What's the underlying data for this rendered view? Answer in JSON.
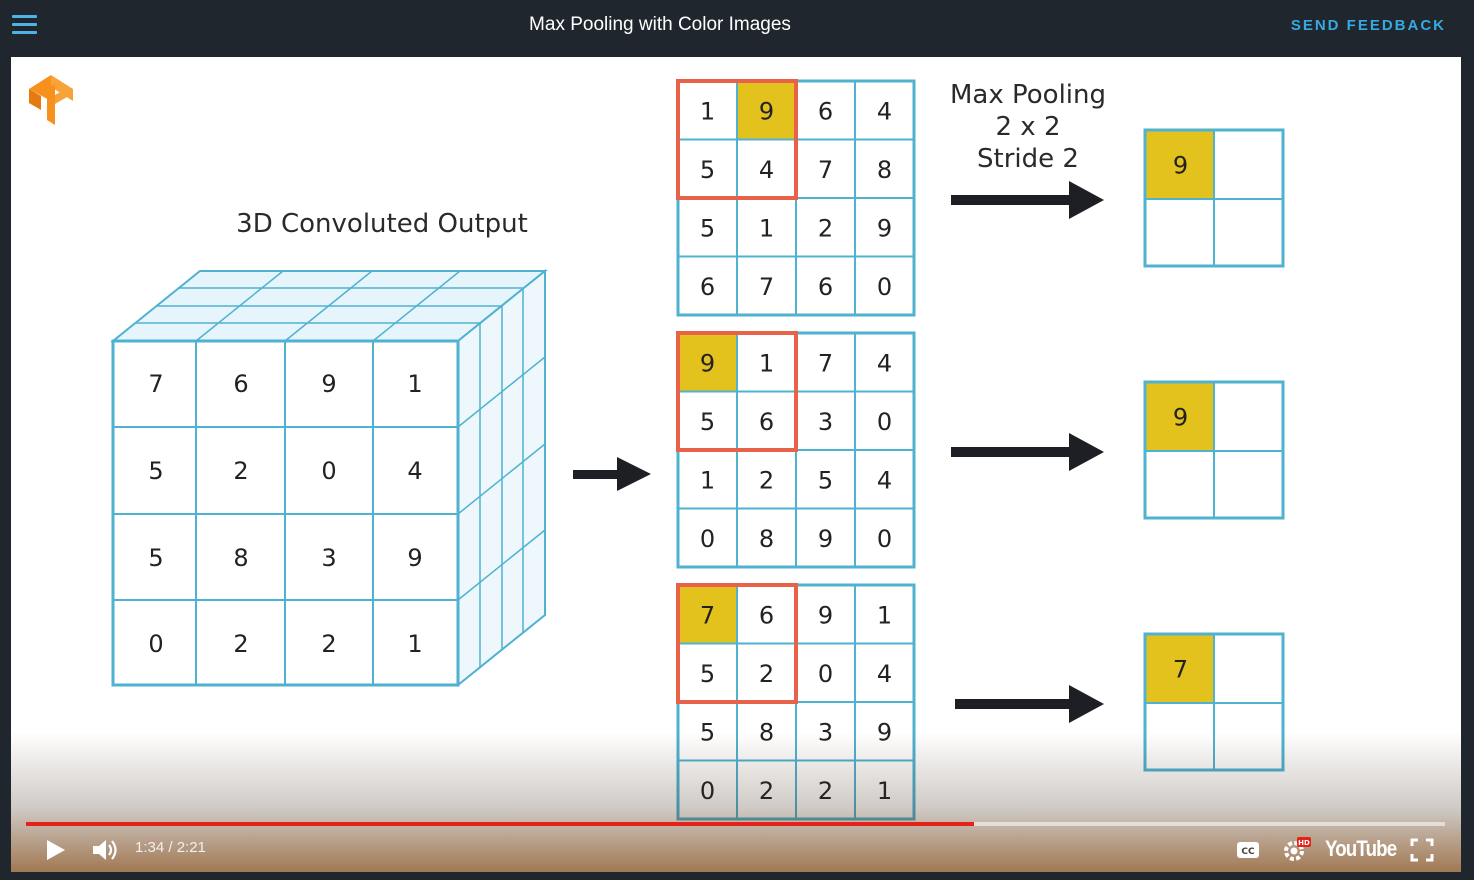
{
  "header": {
    "title": "Max Pooling with Color Images",
    "feedback_label": "SEND FEEDBACK"
  },
  "slide": {
    "cube_title": "3D Convoluted Output",
    "cube_front": [
      [
        "7",
        "6",
        "9",
        "1"
      ],
      [
        "5",
        "2",
        "0",
        "4"
      ],
      [
        "5",
        "8",
        "3",
        "9"
      ],
      [
        "0",
        "2",
        "2",
        "1"
      ]
    ],
    "pool_label_lines": [
      "Max Pooling",
      "2 x 2",
      "Stride 2"
    ],
    "channels": [
      {
        "grid": [
          [
            "1",
            "9",
            "6",
            "4"
          ],
          [
            "5",
            "4",
            "7",
            "8"
          ],
          [
            "5",
            "1",
            "2",
            "9"
          ],
          [
            "6",
            "7",
            "6",
            "0"
          ]
        ],
        "max": "9",
        "max_row": 0,
        "max_col": 1
      },
      {
        "grid": [
          [
            "9",
            "1",
            "7",
            "4"
          ],
          [
            "5",
            "6",
            "3",
            "0"
          ],
          [
            "1",
            "2",
            "5",
            "4"
          ],
          [
            "0",
            "8",
            "9",
            "0"
          ]
        ],
        "max": "9",
        "max_row": 0,
        "max_col": 0
      },
      {
        "grid": [
          [
            "7",
            "6",
            "9",
            "1"
          ],
          [
            "5",
            "2",
            "0",
            "4"
          ],
          [
            "5",
            "8",
            "3",
            "9"
          ],
          [
            "0",
            "2",
            "2",
            "1"
          ]
        ],
        "max": "7",
        "max_row": 0,
        "max_col": 0
      }
    ],
    "colors": {
      "grid_line": "#4fb2d1",
      "highlight": "#e4c21d",
      "window": "#e8624a",
      "arrow": "#1d1f24",
      "logo": "#f6911e"
    }
  },
  "player": {
    "time": "1:34 / 2:21",
    "progress": 0.668,
    "logo_text": "YouTube",
    "icons": {
      "play": "play-icon",
      "volume": "volume-icon",
      "cc": "captions-icon",
      "settings": "settings-icon",
      "fullscreen": "fullscreen-icon"
    },
    "hd_badge": "HD"
  }
}
